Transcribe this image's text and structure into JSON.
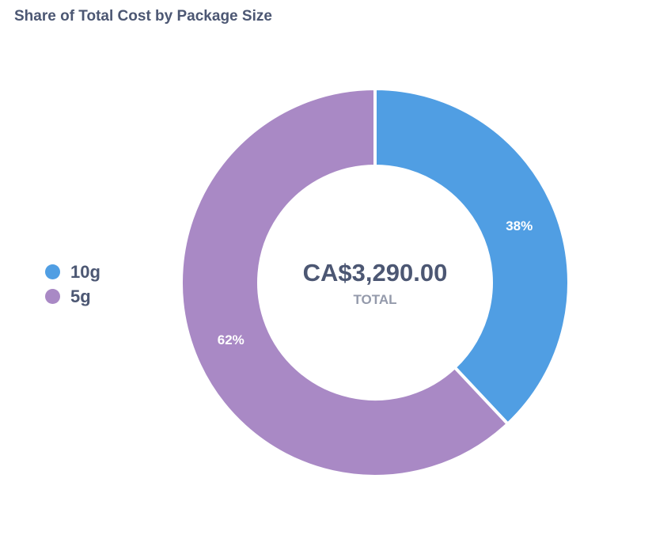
{
  "title": "Share of Total Cost by Package Size",
  "chart_data": {
    "type": "pie",
    "variant": "donut",
    "categories": [
      "10g",
      "5g"
    ],
    "values": [
      38,
      62
    ],
    "value_unit": "percent",
    "data_labels": [
      "38%",
      "62%"
    ],
    "colors": [
      "#509ee3",
      "#a989c5"
    ],
    "legend_position": "left",
    "center": {
      "value": "CA$3,290.00",
      "label": "TOTAL"
    }
  }
}
